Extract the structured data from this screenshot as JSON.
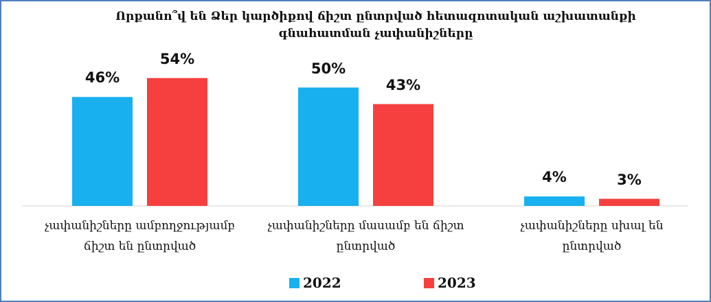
{
  "chart_data": {
    "type": "bar",
    "title": "Որքանո՞վ են Ձեր կարծիքով ճիշտ ընտրված հետազոտական աշխատանքի գնահատման չափանիշները",
    "categories": [
      "չափանիշները ամբողջությամբ ճիշտ են ընտրված",
      "չափանիշները մասամբ են ճիշտ ընտրված",
      "չափանիշները սխալ են ընտրված"
    ],
    "series": [
      {
        "name": "2022",
        "color": "#18b0ef",
        "values": [
          46,
          50,
          4
        ],
        "value_labels": [
          "46%",
          "50%",
          "4%"
        ]
      },
      {
        "name": "2023",
        "color": "#f5403f",
        "values": [
          54,
          43,
          3
        ],
        "value_labels": [
          "54%",
          "43%",
          "3%"
        ]
      }
    ],
    "legend": "bottom"
  }
}
